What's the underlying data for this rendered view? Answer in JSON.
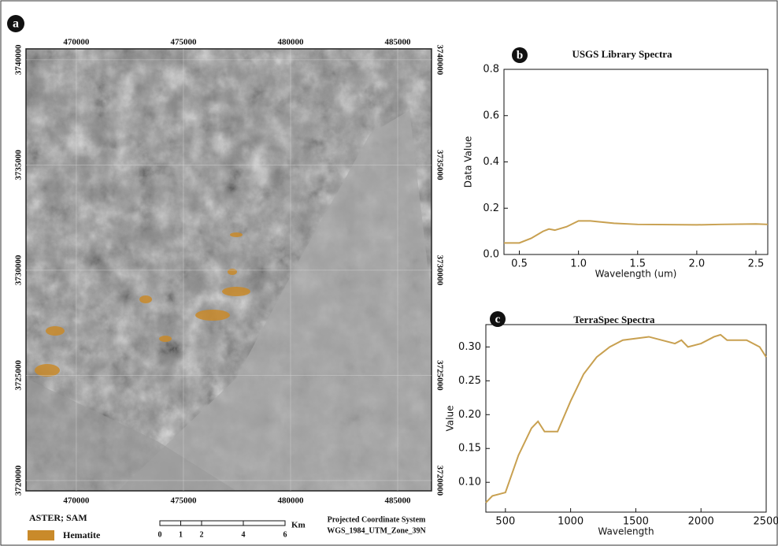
{
  "map": {
    "panel_label": "a",
    "xlim": [
      467650,
      486580
    ],
    "ylim": [
      3719510,
      3740520
    ],
    "xticks": [
      470000,
      475000,
      480000,
      485000
    ],
    "yticks": [
      3740000,
      3735000,
      3730000,
      3725000,
      3720000
    ],
    "legend_title": "ASTER; SAM",
    "legend_item": "Hematite",
    "legend_color": "#c98a2a",
    "scale_ticks": [
      0,
      1,
      2,
      4,
      6
    ],
    "scale_unit": "Km",
    "projection_title": "Projected Coordinate System",
    "projection": "WGS_1984_UTM_Zone_39N"
  },
  "chart_data": [
    {
      "type": "line",
      "panel_label": "b",
      "title": "USGS Library Spectra",
      "x_label": "Wavelength (um)",
      "y_label": "Data Value",
      "color": "#c8a050",
      "x": [
        0.37,
        0.5,
        0.6,
        0.7,
        0.75,
        0.8,
        0.9,
        1.0,
        1.1,
        1.3,
        1.5,
        2.0,
        2.2,
        2.5,
        2.6
      ],
      "values": [
        0.05,
        0.05,
        0.07,
        0.1,
        0.11,
        0.105,
        0.12,
        0.145,
        0.145,
        0.135,
        0.13,
        0.128,
        0.13,
        0.132,
        0.13
      ],
      "xlim": [
        0.37,
        2.6
      ],
      "ylim": [
        0,
        0.8
      ],
      "xticks": [
        0.5,
        {
          "value": 1,
          "label": "1.0"
        },
        1.5,
        {
          "value": 2,
          "label": "2.0"
        },
        2.5
      ],
      "yticks": [
        {
          "value": 0,
          "label": "0.0"
        },
        0.2,
        0.4,
        0.6,
        0.8
      ]
    },
    {
      "type": "line",
      "panel_label": "c",
      "title": "TerraSpec Spectra",
      "x_label": "Wavelength",
      "y_label": "Value",
      "color": "#c8a050",
      "x": [
        350,
        400,
        500,
        600,
        700,
        750,
        800,
        900,
        1000,
        1100,
        1200,
        1300,
        1400,
        1600,
        1800,
        1850,
        1900,
        2000,
        2100,
        2150,
        2200,
        2350,
        2450,
        2500
      ],
      "values": [
        0.07,
        0.08,
        0.085,
        0.14,
        0.18,
        0.19,
        0.175,
        0.175,
        0.22,
        0.26,
        0.285,
        0.3,
        0.31,
        0.315,
        0.305,
        0.31,
        0.3,
        0.305,
        0.315,
        0.318,
        0.31,
        0.31,
        0.3,
        0.285
      ],
      "xlim": [
        350,
        2500
      ],
      "ylim": [
        0.056,
        0.333
      ],
      "xticks": [
        500,
        1000,
        1500,
        2000,
        2500
      ],
      "yticks": [
        {
          "value": 0.1,
          "label": "0.10"
        },
        {
          "value": 0.15,
          "label": "0.15"
        },
        {
          "value": 0.2,
          "label": "0.20"
        },
        {
          "value": 0.25,
          "label": "0.25"
        },
        {
          "value": 0.3,
          "label": "0.30"
        }
      ]
    }
  ]
}
